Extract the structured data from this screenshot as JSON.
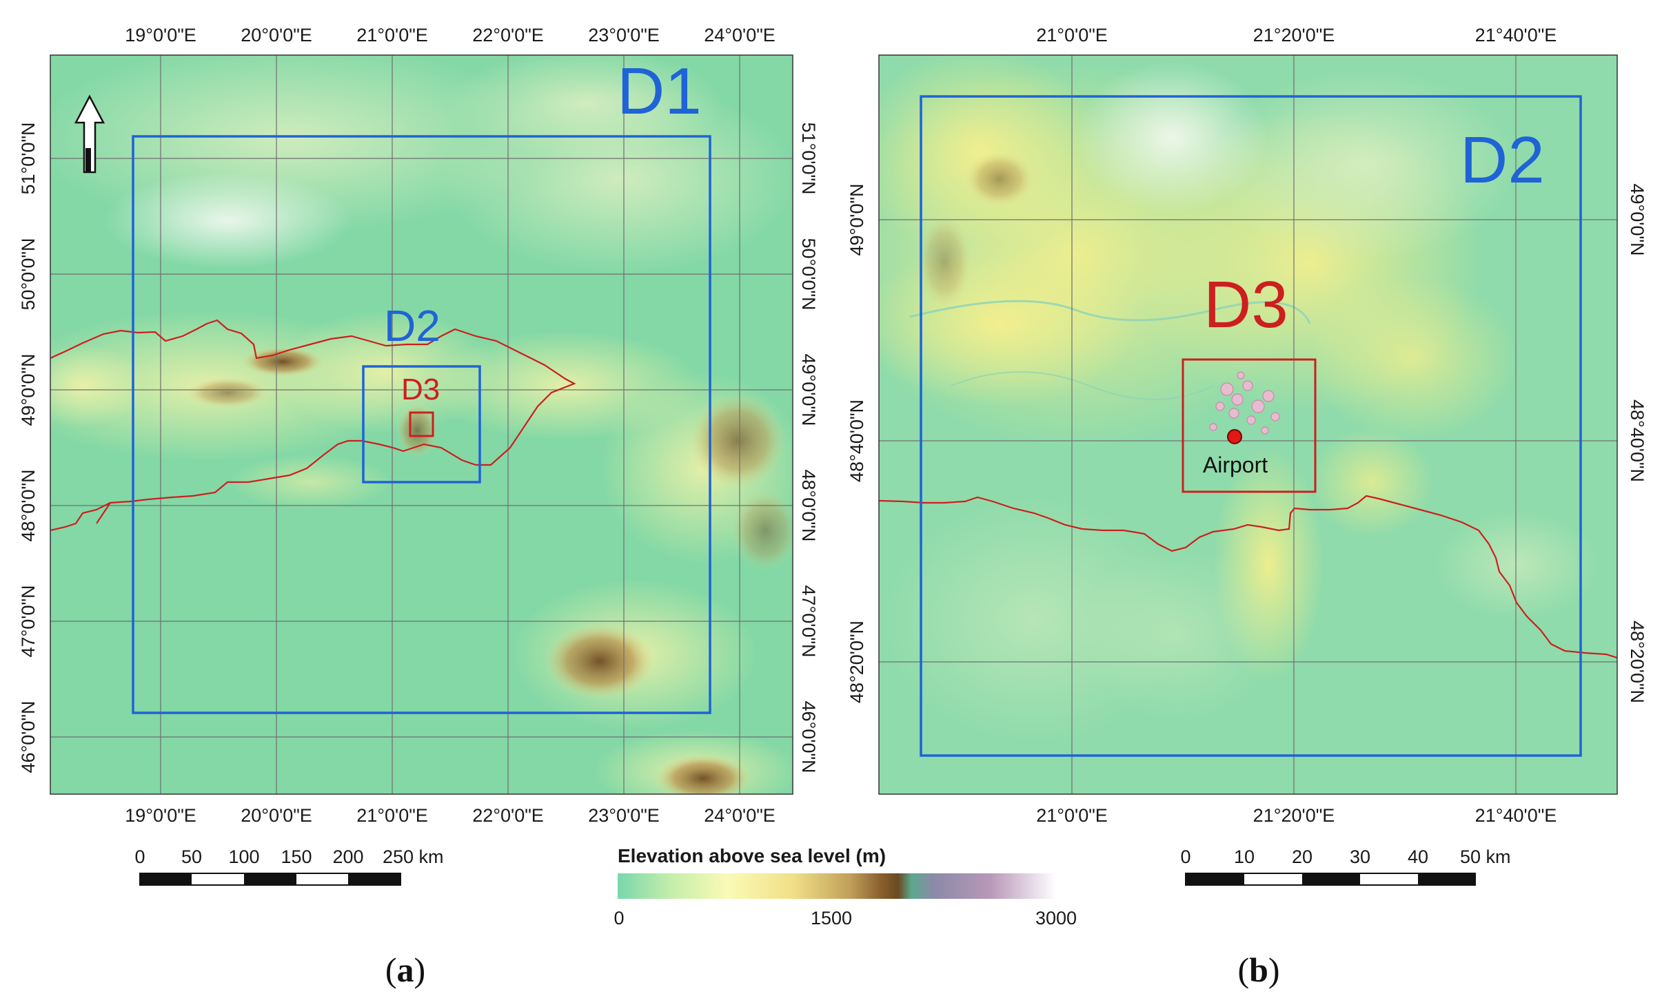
{
  "colors": {
    "domain_blue": "#1f63d6",
    "domain_red": "#cc1f1f",
    "border_red": "#cc1f1f",
    "grid": "#6f6f6f",
    "airport_marker": "#e01818"
  },
  "panel_a": {
    "panel_label": "a",
    "top_ticks": [
      "19°0'0\"E",
      "20°0'0\"E",
      "21°0'0\"E",
      "22°0'0\"E",
      "23°0'0\"E",
      "24°0'0\"E"
    ],
    "bottom_ticks": [
      "19°0'0\"E",
      "20°0'0\"E",
      "21°0'0\"E",
      "22°0'0\"E",
      "23°0'0\"E",
      "24°0'0\"E"
    ],
    "left_ticks": [
      "51°0'0\"N",
      "50°0'0\"N",
      "49°0'0\"N",
      "48°0'0\"N",
      "47°0'0\"N",
      "46°0'0\"N"
    ],
    "right_ticks": [
      "51°0'0\"N",
      "50°0'0\"N",
      "49°0'0\"N",
      "48°0'0\"N",
      "47°0'0\"N",
      "46°0'0\"N"
    ],
    "labels": {
      "d1": "D1",
      "d2": "D2",
      "d3": "D3"
    },
    "north_arrow_icon": "north-arrow-icon",
    "scalebar": {
      "ticks": [
        "0",
        "50",
        "100",
        "150",
        "200",
        "250 km"
      ]
    }
  },
  "panel_b": {
    "panel_label": "b",
    "top_ticks": [
      "21°0'0\"E",
      "21°20'0\"E",
      "21°40'0\"E"
    ],
    "bottom_ticks": [
      "21°0'0\"E",
      "21°20'0\"E",
      "21°40'0\"E"
    ],
    "left_ticks": [
      "49°0'0\"N",
      "48°40'0\"N",
      "48°20'0\"N"
    ],
    "right_ticks": [
      "49°0'0\"N",
      "48°40'0\"N",
      "48°20'0\"N"
    ],
    "labels": {
      "d2": "D2",
      "d3": "D3",
      "airport": "Airport"
    },
    "scalebar": {
      "ticks": [
        "0",
        "10",
        "20",
        "30",
        "40",
        "50 km"
      ]
    }
  },
  "legend": {
    "title": "Elevation above sea level (m)",
    "min": "0",
    "mid": "1500",
    "max": "3000"
  }
}
